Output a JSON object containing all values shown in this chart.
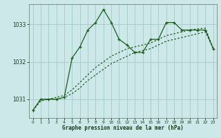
{
  "xlabel": "Graphe pression niveau de la mer (hPa)",
  "bg_color": "#cce8e8",
  "grid_color": "#aacccc",
  "line_color": "#1a5c1a",
  "x": [
    0,
    1,
    2,
    3,
    4,
    5,
    6,
    7,
    8,
    9,
    10,
    11,
    12,
    13,
    14,
    15,
    16,
    17,
    18,
    19,
    20,
    21,
    22,
    23
  ],
  "y_main": [
    1030.7,
    1031.0,
    1031.0,
    1031.0,
    1031.05,
    1032.1,
    1032.4,
    1032.85,
    1033.05,
    1033.4,
    1033.05,
    1032.6,
    1032.45,
    1032.25,
    1032.25,
    1032.6,
    1032.6,
    1033.05,
    1033.05,
    1032.85,
    1032.85,
    1032.85,
    1032.85,
    1032.35
  ],
  "y_low": [
    1030.7,
    1030.95,
    1031.0,
    1031.0,
    1031.05,
    1031.15,
    1031.3,
    1031.5,
    1031.65,
    1031.8,
    1031.95,
    1032.05,
    1032.15,
    1032.25,
    1032.3,
    1032.35,
    1032.45,
    1032.55,
    1032.6,
    1032.65,
    1032.7,
    1032.75,
    1032.8,
    1032.35
  ],
  "y_high": [
    1030.7,
    1031.0,
    1031.0,
    1031.05,
    1031.1,
    1031.25,
    1031.45,
    1031.65,
    1031.85,
    1032.0,
    1032.15,
    1032.25,
    1032.35,
    1032.4,
    1032.45,
    1032.5,
    1032.6,
    1032.7,
    1032.75,
    1032.8,
    1032.85,
    1032.88,
    1032.9,
    1032.35
  ],
  "ylim": [
    1030.5,
    1033.55
  ],
  "yticks": [
    1031,
    1032,
    1033
  ],
  "xticks": [
    0,
    1,
    2,
    3,
    4,
    5,
    6,
    7,
    8,
    9,
    10,
    11,
    12,
    13,
    14,
    15,
    16,
    17,
    18,
    19,
    20,
    21,
    22,
    23
  ]
}
